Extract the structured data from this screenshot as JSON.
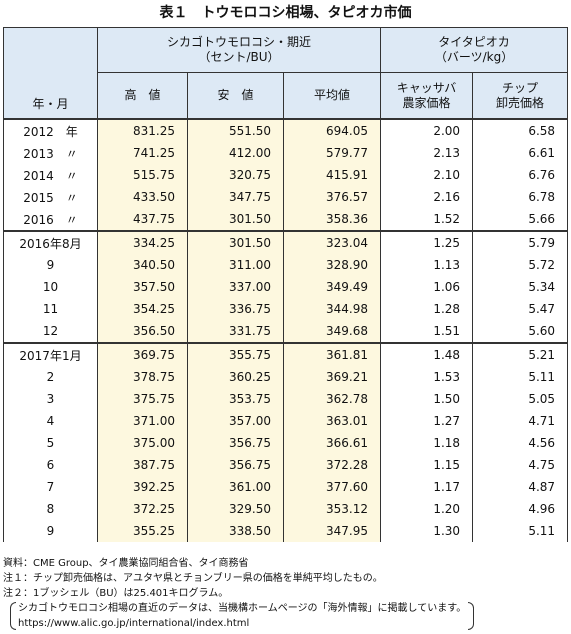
{
  "header": {
    "title": "表１　トウモロコシ相場、タピオカ市価"
  },
  "table": {
    "corner": "年・月",
    "groups_head": [
      [
        "シカゴトウモロコシ・期近",
        "（セント/BU）"
      ],
      [
        "タイタピオカ",
        "（バーツ/kg）"
      ]
    ],
    "columns": [
      [
        "高　値"
      ],
      [
        "安　値"
      ],
      [
        "平均値"
      ],
      [
        "キャッサバ",
        "農家価格"
      ],
      [
        "チップ",
        "卸売価格"
      ]
    ],
    "groups": [
      {
        "rows": [
          [
            "2012　年",
            "831.25",
            "551.50",
            "694.05",
            "2.00",
            "6.58"
          ],
          [
            "2013　〃",
            "741.25",
            "412.00",
            "579.77",
            "2.13",
            "6.61"
          ],
          [
            "2014　〃",
            "515.75",
            "320.75",
            "415.91",
            "2.10",
            "6.76"
          ],
          [
            "2015　〃",
            "433.50",
            "347.75",
            "376.57",
            "2.16",
            "6.78"
          ],
          [
            "2016　〃",
            "437.75",
            "301.50",
            "358.36",
            "1.52",
            "5.66"
          ]
        ]
      },
      {
        "rows": [
          [
            "2016年8月",
            "334.25",
            "301.50",
            "323.04",
            "1.25",
            "5.79"
          ],
          [
            "9",
            "340.50",
            "311.00",
            "328.90",
            "1.13",
            "5.72"
          ],
          [
            "10",
            "357.50",
            "337.00",
            "349.49",
            "1.06",
            "5.34"
          ],
          [
            "11",
            "354.25",
            "336.75",
            "344.98",
            "1.28",
            "5.47"
          ],
          [
            "12",
            "356.50",
            "331.75",
            "349.68",
            "1.51",
            "5.60"
          ]
        ]
      },
      {
        "rows": [
          [
            "2017年1月",
            "369.75",
            "355.75",
            "361.81",
            "1.48",
            "5.21"
          ],
          [
            "2",
            "378.75",
            "360.25",
            "369.21",
            "1.53",
            "5.11"
          ],
          [
            "3",
            "375.75",
            "353.75",
            "362.78",
            "1.50",
            "5.05"
          ],
          [
            "4",
            "371.00",
            "357.00",
            "363.01",
            "1.27",
            "4.71"
          ],
          [
            "5",
            "375.00",
            "356.75",
            "366.61",
            "1.18",
            "4.56"
          ],
          [
            "6",
            "387.75",
            "356.75",
            "372.28",
            "1.15",
            "4.75"
          ],
          [
            "7",
            "392.25",
            "361.00",
            "377.60",
            "1.17",
            "4.87"
          ],
          [
            "8",
            "372.25",
            "329.50",
            "353.12",
            "1.20",
            "4.96"
          ],
          [
            "9",
            "355.25",
            "338.50",
            "347.95",
            "1.30",
            "5.11"
          ]
        ]
      }
    ]
  },
  "notes": [
    "資料：CME Group、タイ農業協同組合省、タイ商務省",
    "注１：チップ卸売価格は、アユタヤ県とチョンブリー県の価格を単純平均したもの。",
    "注２：1ブッシェル（BU）は25.401キログラム。"
  ],
  "remark": [
    "シカゴトウモロコシ相場の直近のデータは、当機構ホームページの「海外情報」に掲載しています。",
    "https://www.alic.go.jp/international/index.html"
  ]
}
